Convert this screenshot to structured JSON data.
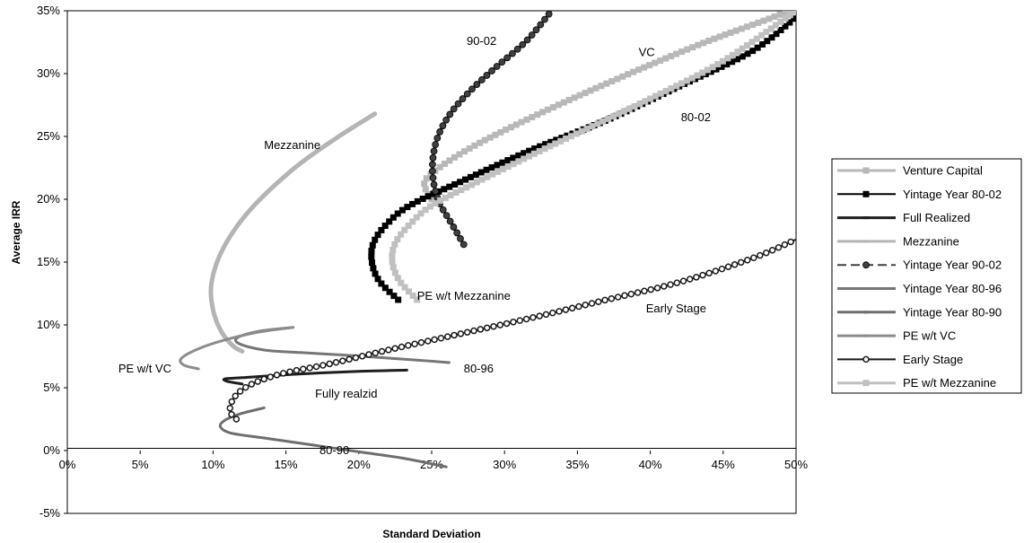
{
  "chart_data": {
    "type": "scatter",
    "title": "",
    "xlabel": "Standard Deviation",
    "ylabel": "Average IRR",
    "xlim": [
      0,
      0.5
    ],
    "ylim": [
      -0.05,
      0.35
    ],
    "x_ticks": [
      "0%",
      "5%",
      "10%",
      "15%",
      "20%",
      "25%",
      "30%",
      "35%",
      "40%",
      "45%",
      "50%"
    ],
    "y_ticks": [
      "-5%",
      "0%",
      "5%",
      "10%",
      "15%",
      "20%",
      "25%",
      "30%",
      "35%"
    ],
    "grid": false,
    "legend_position": "right",
    "series": [
      {
        "name": "Venture Capital",
        "color": "#b8b8b8",
        "marker": "square",
        "line": "solid",
        "width": 3,
        "x": [
          0.25,
          0.245,
          0.255,
          0.28,
          0.32,
          0.36,
          0.4,
          0.44,
          0.48,
          0.5
        ],
        "y": [
          0.2,
          0.213,
          0.225,
          0.243,
          0.266,
          0.287,
          0.307,
          0.326,
          0.343,
          0.352
        ]
      },
      {
        "name": "Yintage Year 80-02",
        "color": "#000000",
        "marker": "square",
        "line": "solid",
        "width": 2,
        "x": [
          0.227,
          0.214,
          0.209,
          0.21,
          0.219,
          0.235,
          0.27,
          0.32,
          0.37,
          0.42,
          0.47,
          0.5
        ],
        "y": [
          0.12,
          0.135,
          0.15,
          0.165,
          0.18,
          0.195,
          0.214,
          0.24,
          0.263,
          0.29,
          0.318,
          0.345
        ]
      },
      {
        "name": "Full Realized",
        "color": "#1e1e1e",
        "marker": "none",
        "line": "solid",
        "width": 3,
        "x": [
          0.233,
          0.2,
          0.16,
          0.12,
          0.108,
          0.11,
          0.12
        ],
        "y": [
          0.064,
          0.063,
          0.061,
          0.058,
          0.057,
          0.055,
          0.053
        ]
      },
      {
        "name": "Mezzanine",
        "color": "#b4b4b4",
        "marker": "none",
        "line": "solid",
        "width": 5,
        "x": [
          0.211,
          0.185,
          0.155,
          0.125,
          0.107,
          0.099,
          0.1,
          0.106,
          0.114,
          0.12
        ],
        "y": [
          0.268,
          0.249,
          0.224,
          0.191,
          0.161,
          0.134,
          0.112,
          0.094,
          0.083,
          0.079
        ]
      },
      {
        "name": "Yintage Year 90-02",
        "color": "#404040",
        "marker": "circle",
        "line": "solid",
        "width": 2,
        "x": [
          0.272,
          0.264,
          0.255,
          0.251,
          0.251,
          0.255,
          0.264,
          0.278,
          0.295,
          0.315,
          0.333
        ],
        "y": [
          0.164,
          0.18,
          0.198,
          0.216,
          0.234,
          0.252,
          0.27,
          0.288,
          0.306,
          0.326,
          0.351
        ]
      },
      {
        "name": "Yintage Year 80-96",
        "color": "#767676",
        "marker": "none",
        "line": "solid",
        "width": 3,
        "x": [
          0.155,
          0.132,
          0.117,
          0.118,
          0.135,
          0.16,
          0.19,
          0.215,
          0.24,
          0.262
        ],
        "y": [
          0.098,
          0.095,
          0.09,
          0.085,
          0.08,
          0.078,
          0.076,
          0.074,
          0.072,
          0.07
        ]
      },
      {
        "name": "Yintage Year 80-90",
        "color": "#6e6e6e",
        "marker": "none",
        "line": "solid",
        "width": 3,
        "x": [
          0.135,
          0.118,
          0.108,
          0.105,
          0.112,
          0.135,
          0.165,
          0.2,
          0.23,
          0.26
        ],
        "y": [
          0.034,
          0.029,
          0.024,
          0.019,
          0.014,
          0.01,
          0.005,
          -0.001,
          -0.006,
          -0.013
        ]
      },
      {
        "name": "PE w/t VC",
        "color": "#8c8c8c",
        "marker": "none",
        "line": "solid",
        "width": 3,
        "x": [
          0.155,
          0.13,
          0.105,
          0.088,
          0.078,
          0.08,
          0.09
        ],
        "y": [
          0.098,
          0.094,
          0.087,
          0.08,
          0.073,
          0.068,
          0.065
        ]
      },
      {
        "name": "Early Stage",
        "color": "#1a1a1a",
        "marker": "circle-open",
        "line": "solid",
        "width": 2,
        "x": [
          0.116,
          0.112,
          0.112,
          0.115,
          0.122,
          0.133,
          0.15,
          0.18,
          0.22,
          0.27,
          0.32,
          0.37,
          0.42,
          0.47,
          0.5
        ],
        "y": [
          0.025,
          0.03,
          0.036,
          0.043,
          0.05,
          0.056,
          0.062,
          0.069,
          0.08,
          0.093,
          0.106,
          0.12,
          0.134,
          0.153,
          0.168
        ]
      },
      {
        "name": "PE w/t Mezzanine",
        "color": "#c0c0c0",
        "marker": "square",
        "line": "solid",
        "width": 3,
        "x": [
          0.24,
          0.228,
          0.223,
          0.225,
          0.235,
          0.25,
          0.28,
          0.32,
          0.36,
          0.4,
          0.45,
          0.5
        ],
        "y": [
          0.12,
          0.135,
          0.15,
          0.165,
          0.18,
          0.195,
          0.213,
          0.236,
          0.258,
          0.28,
          0.31,
          0.35
        ]
      }
    ],
    "annotations": [
      {
        "text": "90-02",
        "x": 0.274,
        "y": 0.323
      },
      {
        "text": "VC",
        "x": 0.392,
        "y": 0.314
      },
      {
        "text": "80-02",
        "x": 0.421,
        "y": 0.262
      },
      {
        "text": "Mezzanine",
        "x": 0.135,
        "y": 0.24
      },
      {
        "text": "PE w/t Mezzanine",
        "x": 0.24,
        "y": 0.12
      },
      {
        "text": "Early Stage",
        "x": 0.397,
        "y": 0.11
      },
      {
        "text": "PE w/t VC",
        "x": 0.035,
        "y": 0.062
      },
      {
        "text": "80-96",
        "x": 0.272,
        "y": 0.062
      },
      {
        "text": "Fully realzid",
        "x": 0.17,
        "y": 0.042
      },
      {
        "text": "80-90",
        "x": 0.173,
        "y": -0.003
      }
    ]
  }
}
